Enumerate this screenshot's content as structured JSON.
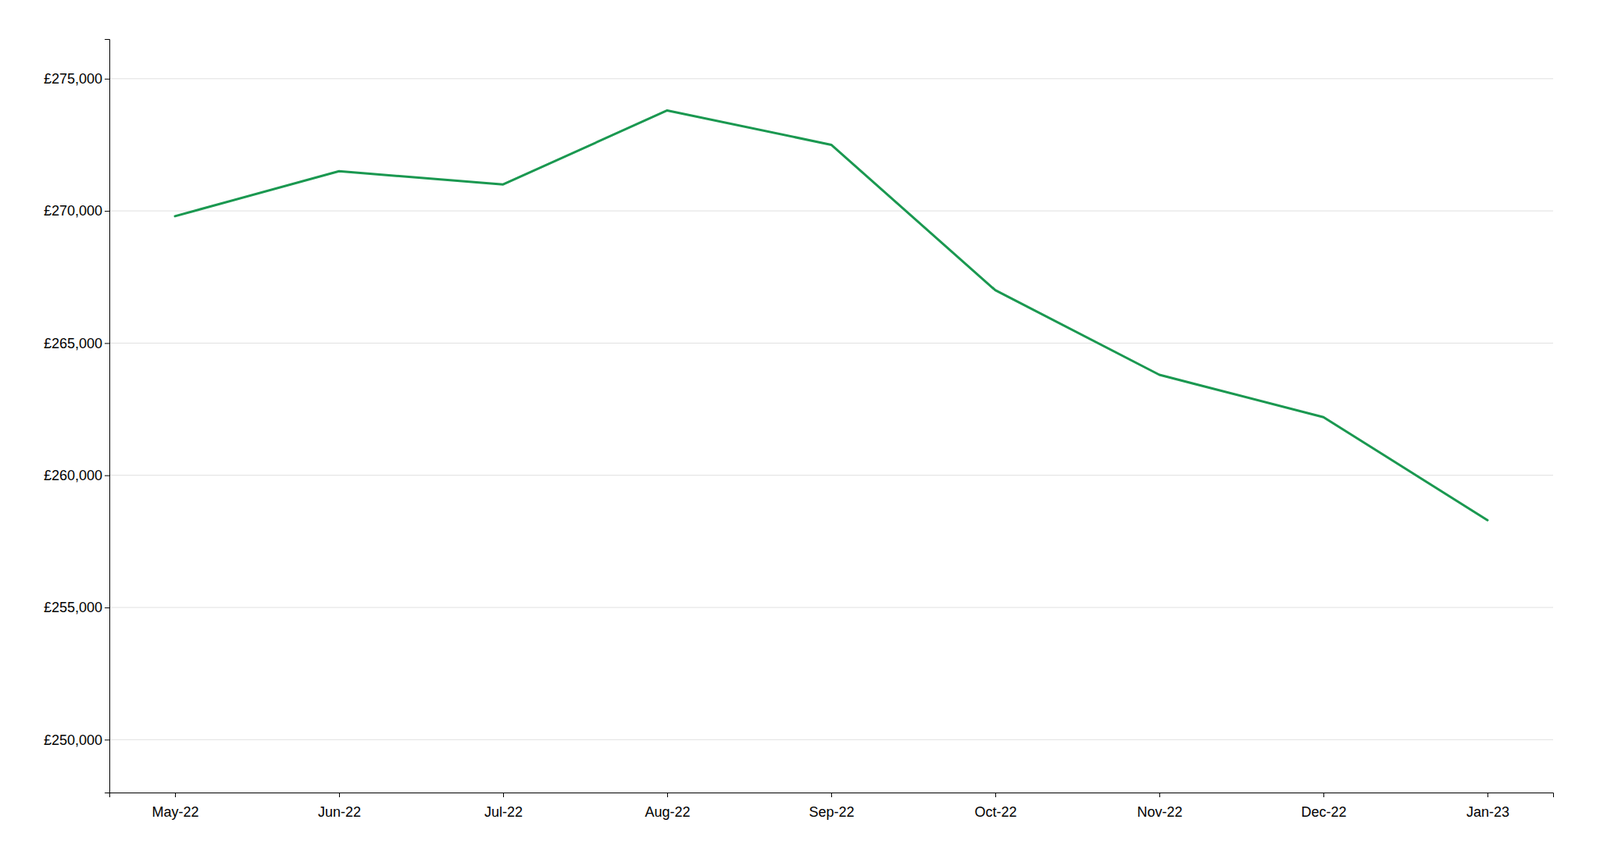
{
  "chart_data": {
    "type": "line",
    "categories": [
      "May-22",
      "Jun-22",
      "Jul-22",
      "Aug-22",
      "Sep-22",
      "Oct-22",
      "Nov-22",
      "Dec-22",
      "Jan-23"
    ],
    "values": [
      269800,
      271500,
      271000,
      273800,
      272500,
      267000,
      263800,
      262200,
      258300
    ],
    "color": "#1a9850",
    "ylim": [
      248000,
      276500
    ],
    "yticks": [
      {
        "value": 250000,
        "label": "£250,000"
      },
      {
        "value": 255000,
        "label": "£255,000"
      },
      {
        "value": 260000,
        "label": "£260,000"
      },
      {
        "value": 265000,
        "label": "£265,000"
      },
      {
        "value": 270000,
        "label": "£270,000"
      },
      {
        "value": 275000,
        "label": "£275,000"
      }
    ],
    "grid": true
  }
}
